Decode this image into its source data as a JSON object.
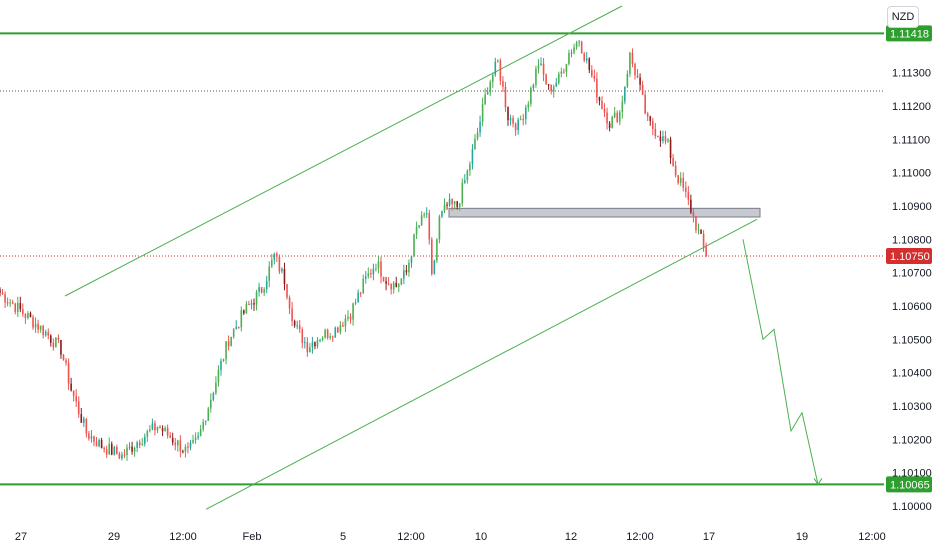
{
  "currency_label": "NZD",
  "chart_data": {
    "type": "candlestick",
    "title": "",
    "xlabel": "",
    "ylabel": "",
    "ylim": [
      1.0996,
      1.1148
    ],
    "grid": false,
    "colors": {
      "up": "#26a69a",
      "up_trend": "#4caf50",
      "down": "#ef5350",
      "down_dark": "#8b1a1a",
      "level_line": "#2e9e2e",
      "channel": "#4caf50",
      "zone_fill": "#c7c9d1",
      "zone_stroke": "#787b86",
      "price_label_bg": "#d32f2f",
      "level_label_bg": "#2e9e2e"
    },
    "y_ticks": [
      "1.11300",
      "1.11200",
      "1.11100",
      "1.11000",
      "1.10900",
      "1.10800",
      "1.10700",
      "1.10600",
      "1.10500",
      "1.10400",
      "1.10300",
      "1.10200",
      "1.10100",
      "1.10000"
    ],
    "x_ticks": [
      "27",
      "29",
      "12:00",
      "Feb",
      "5",
      "12:00",
      "10",
      "12",
      "12:00",
      "17",
      "19",
      "12:00"
    ],
    "price_labels": [
      {
        "text": "1.11418",
        "value": 1.11418,
        "kind": "level"
      },
      {
        "text": "1.10750",
        "value": 1.1075,
        "kind": "last"
      },
      {
        "text": "1.10065",
        "value": 1.10065,
        "kind": "level"
      }
    ],
    "horizontal_levels": [
      1.11418,
      1.10065
    ],
    "dotted_levels": [
      1.11245,
      1.1075
    ],
    "channel": {
      "upper": [
        [
          1.1063,
          1.1063
        ],
        [
          1.1146,
          1.1146
        ]
      ],
      "lower": [
        [
          1.0999,
          1.1086
        ],
        [
          1.1086,
          1.1086
        ]
      ]
    },
    "supply_zone": {
      "top": 1.10893,
      "bottom": 1.10867
    },
    "projection": [
      1.108,
      1.105,
      1.1053,
      1.10225,
      1.1028,
      1.10065
    ],
    "anchors": [
      [
        0,
        1.1064
      ],
      [
        9,
        1.1058
      ],
      [
        18,
        1.1052
      ],
      [
        24,
        1.1047
      ],
      [
        28,
        1.1035
      ],
      [
        34,
        1.1022
      ],
      [
        40,
        1.1018
      ],
      [
        48,
        1.1015
      ],
      [
        55,
        1.102
      ],
      [
        62,
        1.1024
      ],
      [
        68,
        1.102
      ],
      [
        74,
        1.1016
      ],
      [
        78,
        1.102
      ],
      [
        84,
        1.1035
      ],
      [
        90,
        1.105
      ],
      [
        96,
        1.1058
      ],
      [
        103,
        1.1065
      ],
      [
        108,
        1.1075
      ],
      [
        112,
        1.1068
      ],
      [
        116,
        1.1054
      ],
      [
        121,
        1.1048
      ],
      [
        126,
        1.1051
      ],
      [
        132,
        1.1053
      ],
      [
        138,
        1.1058
      ],
      [
        144,
        1.1068
      ],
      [
        148,
        1.1073
      ],
      [
        152,
        1.1068
      ],
      [
        156,
        1.1066
      ],
      [
        160,
        1.107
      ],
      [
        164,
        1.1083
      ],
      [
        168,
        1.1088
      ],
      [
        170,
        1.1068
      ],
      [
        173,
        1.1086
      ],
      [
        176,
        1.109
      ],
      [
        180,
        1.109
      ],
      [
        184,
        1.11
      ],
      [
        188,
        1.1112
      ],
      [
        192,
        1.1126
      ],
      [
        196,
        1.1133
      ],
      [
        200,
        1.1117
      ],
      [
        204,
        1.1114
      ],
      [
        208,
        1.1122
      ],
      [
        212,
        1.1133
      ],
      [
        216,
        1.1125
      ],
      [
        220,
        1.1128
      ],
      [
        224,
        1.1136
      ],
      [
        228,
        1.114
      ],
      [
        232,
        1.1131
      ],
      [
        236,
        1.1122
      ],
      [
        240,
        1.1115
      ],
      [
        244,
        1.1118
      ],
      [
        248,
        1.1135
      ],
      [
        251,
        1.1128
      ],
      [
        255,
        1.1115
      ],
      [
        259,
        1.1112
      ],
      [
        263,
        1.1108
      ],
      [
        266,
        1.11
      ],
      [
        269,
        1.1095
      ],
      [
        272,
        1.1089
      ],
      [
        275,
        1.1082
      ],
      [
        278,
        1.1075
      ]
    ]
  }
}
